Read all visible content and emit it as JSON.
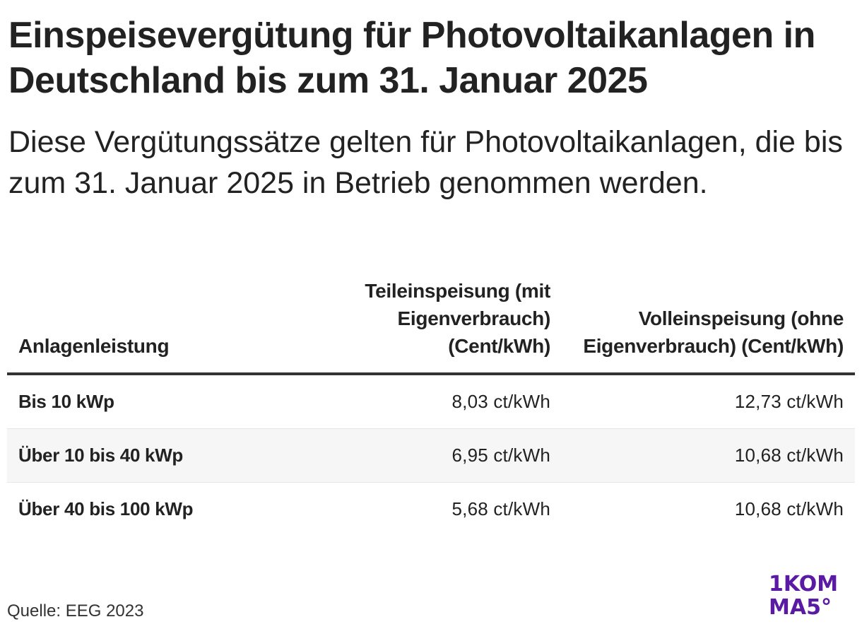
{
  "title": "Einspeisevergütung für Photovoltaikanlagen in Deutschland bis zum 31. Januar 2025",
  "subtitle": "Diese Vergütungssätze gelten für Photovoltaikanlagen, die bis zum 31. Januar 2025 in Betrieb genommen werden.",
  "chart_data": {
    "type": "table",
    "columns": [
      "Anlagenleistung",
      "Teileinspeisung (mit Eigenverbrauch) (Cent/kWh)",
      "Volleinspeisung (ohne Eigenverbrauch) (Cent/kWh)"
    ],
    "rows": [
      [
        "Bis 10 kWp",
        "8,03 ct/kWh",
        "12,73 ct/kWh"
      ],
      [
        "Über 10 bis 40 kWp",
        "6,95 ct/kWh",
        "10,68 ct/kWh"
      ],
      [
        "Über 40 bis 100 kWp",
        "5,68 ct/kWh",
        "10,68 ct/kWh"
      ]
    ]
  },
  "source": "Quelle: EEG 2023",
  "logo": {
    "line1": "1KOM",
    "line2": "MA5°",
    "color": "#5a1aa3"
  },
  "colors": {
    "text": "#222222",
    "header_rule": "#333333",
    "row_divider": "#e6e6e6",
    "alt_row": "#f6f6f6"
  }
}
